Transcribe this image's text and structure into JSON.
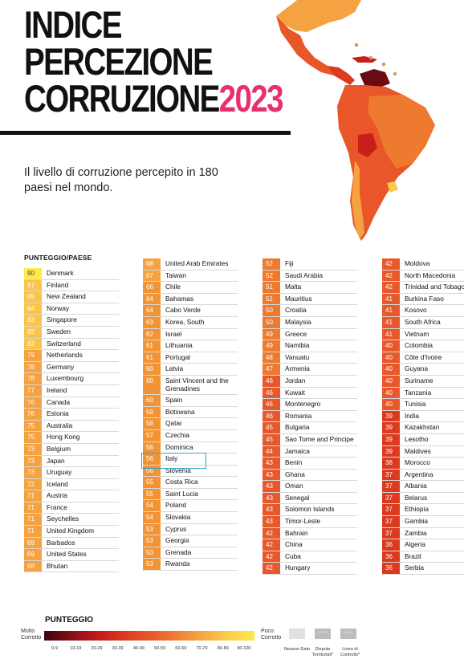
{
  "title": {
    "line1": "INDICE",
    "line2": "PERCEZIONE",
    "line3": "CORRUZIONE",
    "year": "2023"
  },
  "subtitle": "Il livello di corruzione percepito in 180 paesi nel mondo.",
  "columns_header": "PUNTEGGIO/PAESE",
  "colors": {
    "s90": "#fdea4c",
    "s80": "#f9c54a",
    "s70": "#f5a243",
    "s60": "#f39434",
    "s50": "#ee7a2f",
    "s40": "#e8582a",
    "s30": "#db3a1f",
    "accent": "#e8306d",
    "highlight": "#2aa6cf"
  },
  "countries": [
    {
      "s": "90",
      "n": "Denmark"
    },
    {
      "s": "87",
      "n": "Finland"
    },
    {
      "s": "85",
      "n": "New Zealand"
    },
    {
      "s": "84",
      "n": "Norway"
    },
    {
      "s": "83",
      "n": "Singapore"
    },
    {
      "s": "82",
      "n": "Sweden"
    },
    {
      "s": "82",
      "n": "Switzerland"
    },
    {
      "s": "79",
      "n": "Netherlands"
    },
    {
      "s": "78",
      "n": "Germany"
    },
    {
      "s": "78",
      "n": "Luxembourg"
    },
    {
      "s": "77",
      "n": "Ireland"
    },
    {
      "s": "76",
      "n": "Canada"
    },
    {
      "s": "76",
      "n": "Estonia"
    },
    {
      "s": "75",
      "n": "Australia"
    },
    {
      "s": "75",
      "n": "Hong Kong"
    },
    {
      "s": "73",
      "n": "Belgium"
    },
    {
      "s": "73",
      "n": "Japan"
    },
    {
      "s": "73",
      "n": "Uruguay"
    },
    {
      "s": "72",
      "n": "Iceland"
    },
    {
      "s": "71",
      "n": "Austria"
    },
    {
      "s": "71",
      "n": "France"
    },
    {
      "s": "71",
      "n": "Seychelles"
    },
    {
      "s": "71",
      "n": "United Kingdom"
    },
    {
      "s": "69",
      "n": "Barbados"
    },
    {
      "s": "69",
      "n": "United States"
    },
    {
      "s": "68",
      "n": "Bhutan"
    },
    {
      "s": "68",
      "n": "United Arab Emirates"
    },
    {
      "s": "67",
      "n": "Taiwan"
    },
    {
      "s": "66",
      "n": "Chile"
    },
    {
      "s": "64",
      "n": "Bahamas"
    },
    {
      "s": "64",
      "n": "Cabo Verde"
    },
    {
      "s": "63",
      "n": "Korea, South"
    },
    {
      "s": "62",
      "n": "Israel"
    },
    {
      "s": "61",
      "n": "Lithuania"
    },
    {
      "s": "61",
      "n": "Portugal"
    },
    {
      "s": "60",
      "n": "Latvia"
    },
    {
      "s": "60",
      "n": "Saint Vincent and the Grenadines"
    },
    {
      "s": "60",
      "n": "Spain"
    },
    {
      "s": "59",
      "n": "Botswana"
    },
    {
      "s": "58",
      "n": "Qatar"
    },
    {
      "s": "57",
      "n": "Czechia"
    },
    {
      "s": "56",
      "n": "Dominica"
    },
    {
      "s": "56",
      "n": "Italy"
    },
    {
      "s": "56",
      "n": "Slovenia"
    },
    {
      "s": "55",
      "n": "Costa Rica"
    },
    {
      "s": "55",
      "n": "Saint Lucia"
    },
    {
      "s": "54",
      "n": "Poland"
    },
    {
      "s": "54",
      "n": "Slovakia"
    },
    {
      "s": "53",
      "n": "Cyprus"
    },
    {
      "s": "53",
      "n": "Georgia"
    },
    {
      "s": "53",
      "n": "Grenada"
    },
    {
      "s": "53",
      "n": "Rwanda"
    },
    {
      "s": "52",
      "n": "Fiji"
    },
    {
      "s": "52",
      "n": "Saudi Arabia"
    },
    {
      "s": "51",
      "n": "Malta"
    },
    {
      "s": "51",
      "n": "Mauritius"
    },
    {
      "s": "50",
      "n": "Croatia"
    },
    {
      "s": "50",
      "n": "Malaysia"
    },
    {
      "s": "49",
      "n": "Greece"
    },
    {
      "s": "49",
      "n": "Namibia"
    },
    {
      "s": "48",
      "n": "Vanuatu"
    },
    {
      "s": "47",
      "n": "Armenia"
    },
    {
      "s": "46",
      "n": "Jordan"
    },
    {
      "s": "46",
      "n": "Kuwait"
    },
    {
      "s": "46",
      "n": "Montenegro"
    },
    {
      "s": "46",
      "n": "Romania"
    },
    {
      "s": "45",
      "n": "Bulgaria"
    },
    {
      "s": "45",
      "n": "Sao Tome and Principe"
    },
    {
      "s": "44",
      "n": "Jamaica"
    },
    {
      "s": "43",
      "n": "Benin"
    },
    {
      "s": "43",
      "n": "Ghana"
    },
    {
      "s": "43",
      "n": "Oman"
    },
    {
      "s": "43",
      "n": "Senegal"
    },
    {
      "s": "43",
      "n": "Solomon Islands"
    },
    {
      "s": "43",
      "n": "Timor-Leste"
    },
    {
      "s": "42",
      "n": "Bahrain"
    },
    {
      "s": "42",
      "n": "China"
    },
    {
      "s": "42",
      "n": "Cuba"
    },
    {
      "s": "42",
      "n": "Hungary"
    },
    {
      "s": "42",
      "n": "Moldova"
    },
    {
      "s": "42",
      "n": "North Macedonia"
    },
    {
      "s": "42",
      "n": "Trinidad and Tobago"
    },
    {
      "s": "41",
      "n": "Burkina Faso"
    },
    {
      "s": "41",
      "n": "Kosovo"
    },
    {
      "s": "41",
      "n": "South Africa"
    },
    {
      "s": "41",
      "n": "Vietnam"
    },
    {
      "s": "40",
      "n": "Colombia"
    },
    {
      "s": "40",
      "n": "Côte d'Ivoire"
    },
    {
      "s": "40",
      "n": "Guyana"
    },
    {
      "s": "40",
      "n": "Suriname"
    },
    {
      "s": "40",
      "n": "Tanzania"
    },
    {
      "s": "40",
      "n": "Tunisia"
    },
    {
      "s": "39",
      "n": "India"
    },
    {
      "s": "39",
      "n": "Kazakhstan"
    },
    {
      "s": "39",
      "n": "Lesotho"
    },
    {
      "s": "39",
      "n": "Maldives"
    },
    {
      "s": "38",
      "n": "Morocco"
    },
    {
      "s": "37",
      "n": "Argentina"
    },
    {
      "s": "37",
      "n": "Albania"
    },
    {
      "s": "37",
      "n": "Belarus"
    },
    {
      "s": "37",
      "n": "Ethiopia"
    },
    {
      "s": "37",
      "n": "Gambia"
    },
    {
      "s": "37",
      "n": "Zambia"
    },
    {
      "s": "36",
      "n": "Algeria"
    },
    {
      "s": "36",
      "n": "Brazil"
    },
    {
      "s": "36",
      "n": "Serbia"
    }
  ],
  "column_counts": [
    26,
    26,
    27,
    27
  ],
  "legend": {
    "title": "PUNTEGGIO",
    "left_label": "Molto Corrotto",
    "right_label": "Poco Corrotto",
    "ticks": [
      "0-9",
      "10-19",
      "20-29",
      "30-39",
      "40-49",
      "50-59",
      "60-69",
      "70-79",
      "80-89",
      "90-100"
    ],
    "no_data": "Nessun Dato",
    "disputed": "Dispute Territoriali*",
    "control_line": "Linea di Controllo*"
  }
}
